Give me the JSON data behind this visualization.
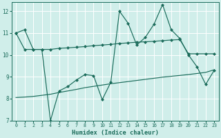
{
  "xlabel": "Humidex (Indice chaleur)",
  "xlim": [
    -0.5,
    23.5
  ],
  "ylim": [
    7,
    12.4
  ],
  "yticks": [
    7,
    8,
    9,
    10,
    11,
    12
  ],
  "xticks": [
    0,
    1,
    2,
    3,
    4,
    5,
    6,
    7,
    8,
    9,
    10,
    11,
    12,
    13,
    14,
    15,
    16,
    17,
    18,
    19,
    20,
    21,
    22,
    23
  ],
  "background_color": "#d0eeea",
  "line_color": "#1a6b5a",
  "grid_color": "#ffffff",
  "line1_x": [
    0,
    1,
    2,
    3,
    4,
    5,
    6,
    7,
    8,
    9,
    10,
    11,
    12,
    13,
    14,
    15,
    16,
    17,
    18,
    19,
    20,
    21,
    22,
    23
  ],
  "line1_y": [
    11.0,
    11.15,
    10.25,
    10.25,
    7.0,
    8.35,
    8.55,
    8.85,
    9.1,
    9.05,
    7.95,
    8.75,
    12.0,
    11.45,
    10.45,
    10.8,
    11.4,
    12.3,
    11.15,
    10.75,
    10.0,
    9.45,
    8.65,
    9.3
  ],
  "line2_x": [
    0,
    1,
    2,
    3,
    4,
    5,
    6,
    7,
    8,
    9,
    10,
    11,
    12,
    13,
    14,
    15,
    16,
    17,
    18,
    19,
    20,
    21,
    22,
    23
  ],
  "line2_y": [
    11.0,
    10.25,
    10.25,
    10.25,
    10.25,
    10.3,
    10.32,
    10.35,
    10.38,
    10.42,
    10.45,
    10.48,
    10.52,
    10.55,
    10.58,
    10.6,
    10.62,
    10.65,
    10.68,
    10.7,
    10.05,
    10.05,
    10.05,
    10.05
  ],
  "line3_x": [
    0,
    1,
    2,
    3,
    4,
    5,
    6,
    7,
    8,
    9,
    10,
    11,
    12,
    13,
    14,
    15,
    16,
    17,
    18,
    19,
    20,
    21,
    22,
    23
  ],
  "line3_y": [
    8.05,
    8.07,
    8.1,
    8.15,
    8.2,
    8.28,
    8.35,
    8.42,
    8.5,
    8.56,
    8.62,
    8.68,
    8.73,
    8.78,
    8.83,
    8.88,
    8.93,
    8.98,
    9.02,
    9.06,
    9.1,
    9.15,
    9.2,
    9.32
  ]
}
